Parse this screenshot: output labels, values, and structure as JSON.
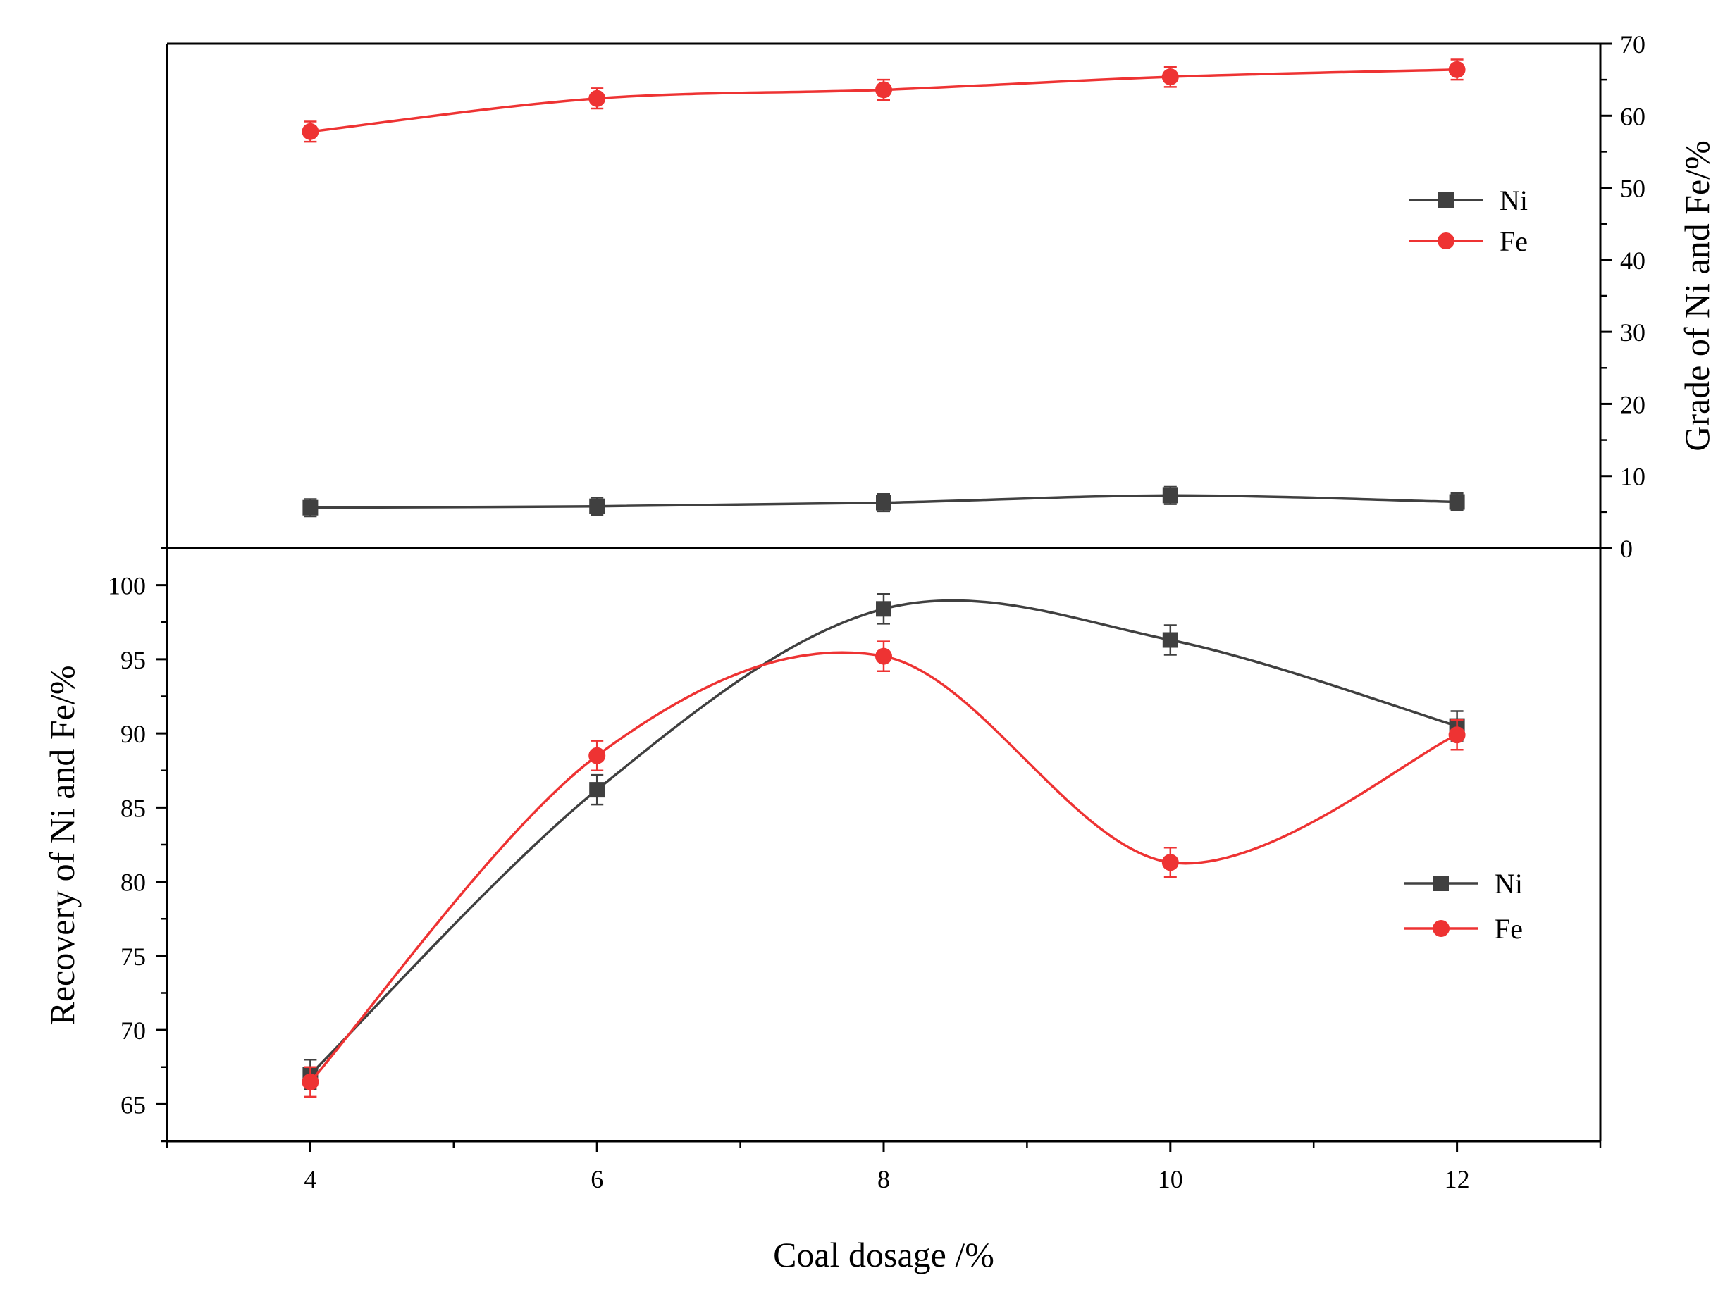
{
  "chart_data": [
    {
      "type": "line",
      "panel": "top",
      "title": "",
      "xlabel": "Coal dosage /%",
      "ylabel": "Grade of Ni and Fe/%",
      "yaxis_side": "right",
      "x": [
        4,
        6,
        8,
        10,
        12
      ],
      "xlim": [
        3,
        13
      ],
      "xticks": [
        4,
        6,
        8,
        10,
        12
      ],
      "ylim": [
        0,
        70
      ],
      "yticks": [
        0,
        10,
        20,
        30,
        40,
        50,
        60,
        70
      ],
      "legend_position": "middle-right",
      "series": [
        {
          "name": "Ni",
          "marker": "square",
          "color": "#404040",
          "values": [
            5.6,
            5.8,
            6.3,
            7.3,
            6.4
          ],
          "error": [
            1.2,
            1.2,
            1.2,
            1.2,
            1.2
          ]
        },
        {
          "name": "Fe",
          "marker": "circle",
          "color": "#ee3333",
          "values": [
            57.8,
            62.4,
            63.6,
            65.4,
            66.4
          ],
          "error": [
            1.4,
            1.4,
            1.4,
            1.4,
            1.4
          ]
        }
      ]
    },
    {
      "type": "line",
      "panel": "bottom",
      "title": "",
      "xlabel": "Coal dosage /%",
      "ylabel": "Recovery of Ni and Fe/%",
      "yaxis_side": "left",
      "x": [
        4,
        6,
        8,
        10,
        12
      ],
      "xlim": [
        3,
        13
      ],
      "xticks": [
        4,
        6,
        8,
        10,
        12
      ],
      "ylim": [
        62.5,
        102.5
      ],
      "yticks": [
        65,
        70,
        75,
        80,
        85,
        90,
        95,
        100
      ],
      "legend_position": "right",
      "series": [
        {
          "name": "Ni",
          "marker": "square",
          "color": "#404040",
          "values": [
            67.0,
            86.2,
            98.4,
            96.3,
            90.5
          ],
          "error": [
            1.0,
            1.0,
            1.0,
            1.0,
            1.0
          ]
        },
        {
          "name": "Fe",
          "marker": "circle",
          "color": "#ee3333",
          "values": [
            66.5,
            88.5,
            95.2,
            81.3,
            89.9
          ],
          "error": [
            1.0,
            1.0,
            1.0,
            1.0,
            1.0
          ]
        }
      ]
    }
  ]
}
